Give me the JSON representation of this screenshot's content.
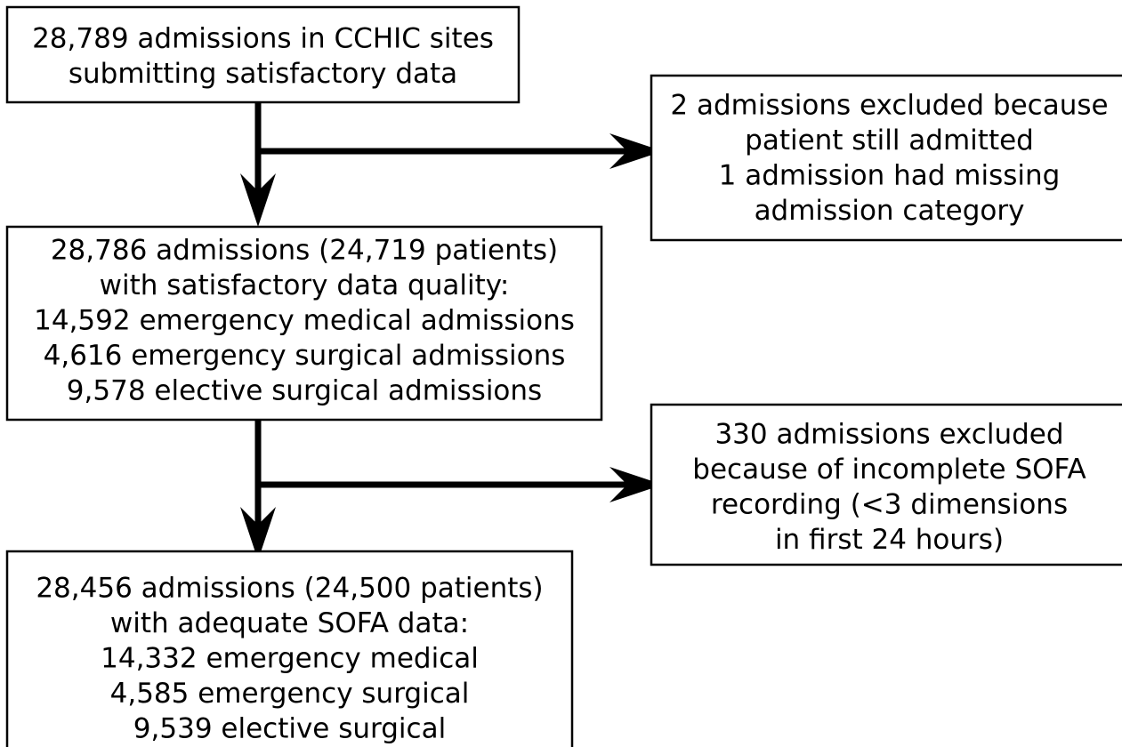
{
  "nodes": [
    {
      "lines": [
        "28,789 admissions in CCHIC sites",
        "submitting satisfactory data"
      ]
    },
    {
      "lines": [
        "2 admissions excluded because",
        "patient still admitted",
        "1 admission had missing",
        "admission category"
      ]
    },
    {
      "lines": [
        "28,786 admissions (24,719 patients)",
        "with satisfactory data quality:",
        "14,592 emergency medical admissions",
        "4,616 emergency surgical admissions",
        "9,578 elective surgical admissions"
      ]
    },
    {
      "lines": [
        "330 admissions excluded",
        "because of incomplete SOFA",
        "recording (<3 dimensions",
        "in first 24 hours)"
      ]
    },
    {
      "lines": [
        "28,456 admissions (24,500 patients)",
        "with adequate SOFA data:",
        "14,332 emergency medical",
        "4,585 emergency surgical",
        "9,539 elective surgical"
      ]
    }
  ]
}
